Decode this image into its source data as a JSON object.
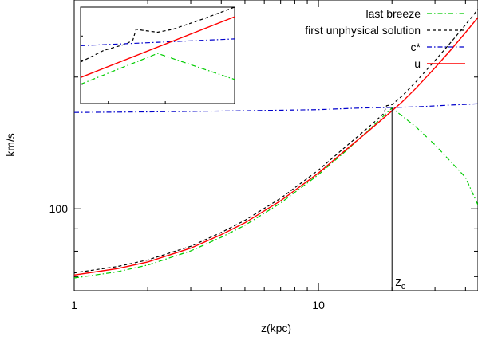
{
  "chart_data": {
    "type": "line",
    "xlabel": "z(kpc)",
    "ylabel": "km/s",
    "xscale": "log",
    "yscale": "log",
    "xlim": [
      1,
      45
    ],
    "ylim": [
      65,
      300
    ],
    "x_ticks": [
      {
        "value": 1,
        "label": "1"
      },
      {
        "value": 10,
        "label": "10"
      }
    ],
    "y_ticks": [
      {
        "value": 100,
        "label": "100"
      }
    ],
    "legend_position": "top-right",
    "grid": false,
    "series": [
      {
        "name": "last breeze",
        "color": "#00cc00",
        "dash": "dash-dot",
        "x": [
          1,
          1.5,
          2,
          3,
          4,
          5,
          7,
          10,
          13,
          16,
          20,
          25,
          30,
          40,
          45
        ],
        "y": [
          69.5,
          71.8,
          74.4,
          80.1,
          86.1,
          91.7,
          103.1,
          119.7,
          135.8,
          151.0,
          170.0,
          154.0,
          140.0,
          118.0,
          102.0
        ]
      },
      {
        "name": "first unphysical solution",
        "color": "#000000",
        "dash": "dash",
        "x": [
          1,
          1.5,
          2,
          3,
          4,
          5,
          7,
          10,
          13,
          16,
          18.5,
          19,
          20,
          22,
          25,
          30,
          35,
          40,
          45
        ],
        "y": [
          71.4,
          73.8,
          76.4,
          82.1,
          88.3,
          94.1,
          105.7,
          122.6,
          139.0,
          153.4,
          165.0,
          172.0,
          173.0,
          181.0,
          194.8,
          218.1,
          240.8,
          263.2,
          285.8
        ]
      },
      {
        "name": "c*",
        "color": "#0000cc",
        "dash": "dash-dot",
        "x": [
          1,
          2,
          5,
          10,
          15,
          20,
          25,
          30,
          35,
          40,
          45
        ],
        "y": [
          166,
          166.5,
          167.5,
          168.5,
          170.0,
          170.5,
          171.0,
          171.8,
          172.6,
          173.2,
          173.8
        ]
      },
      {
        "name": "u",
        "color": "#ff0000",
        "dash": "solid",
        "x": [
          1,
          1.5,
          2,
          3,
          4,
          5,
          7,
          10,
          13,
          16,
          20,
          22,
          25,
          30,
          35,
          40,
          45
        ],
        "y": [
          70.6,
          73.0,
          75.6,
          81.3,
          87.3,
          92.9,
          104.3,
          120.7,
          136.6,
          150.4,
          167.4,
          175.5,
          188.3,
          210.0,
          231.4,
          252.6,
          273.7
        ]
      }
    ],
    "annotations": [
      {
        "type": "vline",
        "x": 20,
        "y_from": 65,
        "y_to": 170,
        "label": "z",
        "label_subscript": "c"
      }
    ],
    "inset": {
      "position": "top-left",
      "axes_shown": false,
      "series": [
        {
          "name": "last breeze",
          "color": "#00cc00",
          "dash": "dash-dot",
          "x": [
            0,
            0.5,
            1
          ],
          "y": [
            0.2,
            0.52,
            0.25
          ]
        },
        {
          "name": "first unphysical solution",
          "color": "#000000",
          "dash": "dash",
          "x": [
            0,
            0.15,
            0.3,
            0.34,
            0.36,
            0.4,
            0.5,
            0.6,
            0.8,
            1
          ],
          "y": [
            0.43,
            0.55,
            0.62,
            0.66,
            0.77,
            0.76,
            0.74,
            0.77,
            0.88,
            1
          ]
        },
        {
          "name": "c*",
          "color": "#0000cc",
          "dash": "dash-dot",
          "x": [
            0,
            1
          ],
          "y": [
            0.6,
            0.67
          ]
        },
        {
          "name": "u",
          "color": "#ff0000",
          "dash": "solid",
          "x": [
            0,
            1
          ],
          "y": [
            0.27,
            0.9
          ]
        }
      ]
    }
  }
}
